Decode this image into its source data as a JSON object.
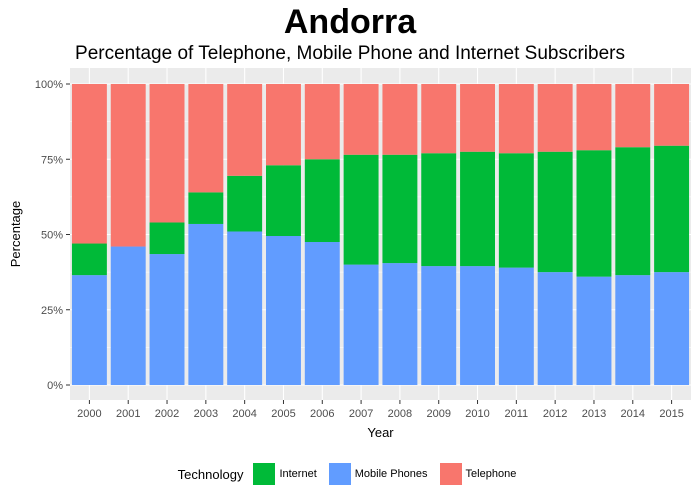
{
  "title": "Andorra",
  "subtitle": "Percentage of Telephone, Mobile Phone and Internet Subscribers",
  "colors": {
    "internet": "#00BA38",
    "mobile": "#619CFF",
    "telephone": "#F8766D",
    "panel": "#EBEBEB",
    "grid": "#FFFFFF"
  },
  "legend": {
    "title": "Technology",
    "items": [
      "Internet",
      "Mobile Phones",
      "Telephone"
    ]
  },
  "chart_data": {
    "type": "bar",
    "stacked": true,
    "xlabel": "Year",
    "ylabel": "Percentage",
    "ylim": [
      0,
      100
    ],
    "yticks": [
      "0%",
      "25%",
      "50%",
      "75%",
      "100%"
    ],
    "categories": [
      "2000",
      "2001",
      "2002",
      "2003",
      "2004",
      "2005",
      "2006",
      "2007",
      "2008",
      "2009",
      "2010",
      "2011",
      "2012",
      "2013",
      "2014",
      "2015"
    ],
    "series": [
      {
        "name": "Mobile Phones",
        "values": [
          36.5,
          46,
          43.5,
          53.5,
          51,
          49.5,
          47.5,
          40,
          40.5,
          39.5,
          39.5,
          39,
          37.5,
          36,
          36.5,
          37.5
        ]
      },
      {
        "name": "Internet",
        "values": [
          10.5,
          0,
          10.5,
          10.5,
          18.5,
          23.5,
          27.5,
          36.5,
          36,
          37.5,
          38,
          38,
          40,
          42,
          42.5,
          42
        ]
      },
      {
        "name": "Telephone",
        "values": [
          53,
          54,
          46,
          36,
          30.5,
          27,
          25,
          23.5,
          23.5,
          23,
          22.5,
          23,
          22.5,
          22,
          21,
          20.5
        ]
      }
    ],
    "grid": true,
    "legend_position": "bottom"
  }
}
